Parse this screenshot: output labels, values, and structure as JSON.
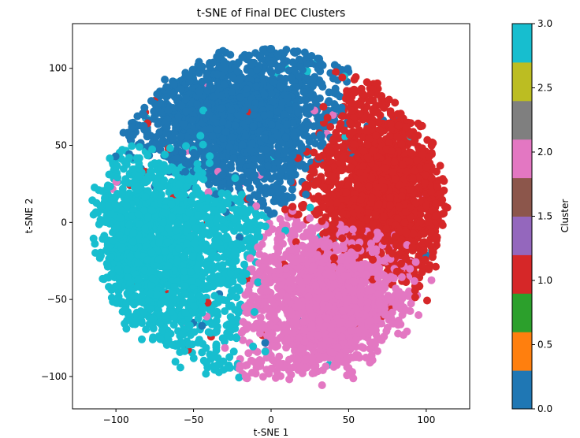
{
  "chart_data": {
    "type": "scatter",
    "title": "t-SNE of Final DEC Clusters",
    "xlabel": "t-SNE 1",
    "ylabel": "t-SNE 2",
    "xlim": [
      -128,
      128
    ],
    "ylim": [
      -121,
      129
    ],
    "xticks": [
      -100,
      -50,
      0,
      50,
      100
    ],
    "yticks": [
      -100,
      -50,
      0,
      50,
      100
    ],
    "xtick_labels": [
      "−100",
      "−50",
      "0",
      "50",
      "100"
    ],
    "ytick_labels": [
      "−100",
      "−50",
      "0",
      "50",
      "100"
    ],
    "grid": false,
    "colorbar": {
      "label": "Cluster",
      "range": [
        0.0,
        3.0
      ],
      "ticks": [
        0.0,
        0.5,
        1.0,
        1.5,
        2.0,
        2.5,
        3.0
      ],
      "tick_labels": [
        "0.0",
        "0.5",
        "1.0",
        "1.5",
        "2.0",
        "2.5",
        "3.0"
      ],
      "colors": [
        "#1f77b4",
        "#ff7f0e",
        "#2ca02c",
        "#d62728",
        "#9467bd",
        "#8c564b",
        "#e377c2",
        "#7f7f7f",
        "#bcbd22",
        "#17becf"
      ]
    },
    "clusters": [
      {
        "value": 0,
        "color": "#1f77b4",
        "center": [
          -25,
          70
        ],
        "spread": [
          38,
          28
        ]
      },
      {
        "value": 1,
        "color": "#d62728",
        "center": [
          75,
          18
        ],
        "spread": [
          28,
          38
        ]
      },
      {
        "value": 2,
        "color": "#e377c2",
        "center": [
          40,
          -52
        ],
        "spread": [
          30,
          28
        ]
      },
      {
        "value": 3,
        "color": "#17becf",
        "center": [
          -75,
          -20
        ],
        "spread": [
          32,
          40
        ]
      }
    ]
  }
}
